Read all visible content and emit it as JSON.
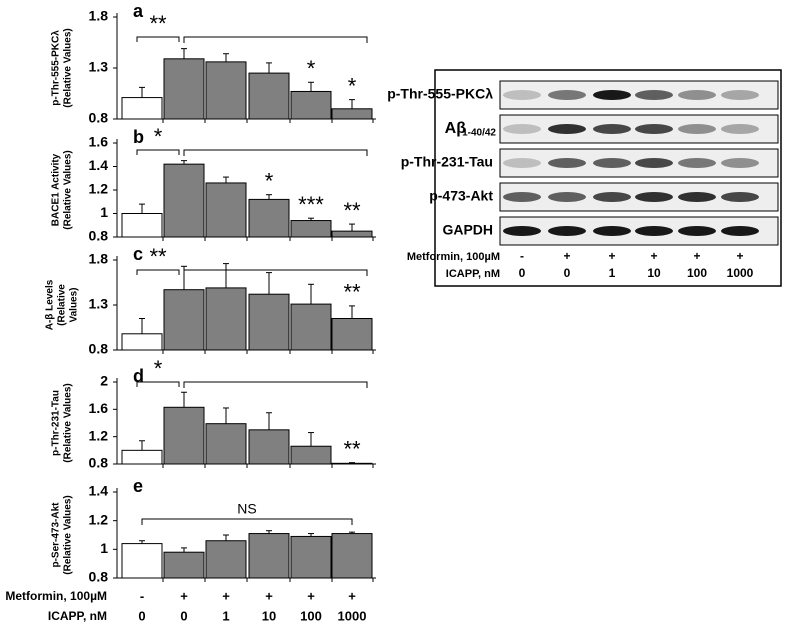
{
  "chart_data": [
    {
      "type": "bar",
      "panel": "a",
      "ylabel": [
        "p-Thr-555-PKCλ",
        "(Relative Values)"
      ],
      "ylim": [
        0.8,
        1.8
      ],
      "yticks": [
        0.8,
        1.3,
        1.8
      ],
      "values": [
        1.01,
        1.39,
        1.36,
        1.25,
        1.07,
        0.9
      ],
      "errors": [
        0.1,
        0.1,
        0.08,
        0.1,
        0.09,
        0.09
      ],
      "colors": [
        "#ffffff",
        "#808080",
        "#808080",
        "#808080",
        "#808080",
        "#808080"
      ],
      "bracket_label": "**",
      "bar_labels": [
        null,
        null,
        null,
        null,
        "*",
        "*"
      ]
    },
    {
      "type": "bar",
      "panel": "b",
      "ylabel": [
        "BACE1 Activity",
        "(Relative Values)"
      ],
      "ylim": [
        0.8,
        1.6
      ],
      "yticks": [
        0.8,
        1,
        1.2,
        1.4,
        1.6
      ],
      "values": [
        1.0,
        1.42,
        1.26,
        1.12,
        0.94,
        0.85
      ],
      "errors": [
        0.08,
        0.03,
        0.05,
        0.04,
        0.02,
        0.06
      ],
      "colors": [
        "#ffffff",
        "#808080",
        "#808080",
        "#808080",
        "#808080",
        "#808080"
      ],
      "bracket_label": "*",
      "bar_labels": [
        null,
        null,
        null,
        "*",
        "***",
        "**"
      ]
    },
    {
      "type": "bar",
      "panel": "c",
      "ylabel": [
        "A-β Levels",
        "(Relative",
        "Values)"
      ],
      "ylim": [
        0.8,
        1.8
      ],
      "yticks": [
        0.8,
        1.3,
        1.8
      ],
      "values": [
        0.98,
        1.47,
        1.49,
        1.42,
        1.31,
        1.15
      ],
      "errors": [
        0.17,
        0.26,
        0.27,
        0.24,
        0.22,
        0.14
      ],
      "colors": [
        "#ffffff",
        "#808080",
        "#808080",
        "#808080",
        "#808080",
        "#808080"
      ],
      "bracket_label": "**",
      "bar_labels": [
        null,
        null,
        null,
        null,
        null,
        "**"
      ]
    },
    {
      "type": "bar",
      "panel": "d",
      "ylabel": [
        "p-Thr-231-Tau",
        "(Relative Values)"
      ],
      "ylim": [
        0.8,
        2.0
      ],
      "yticks": [
        0.8,
        1.2,
        1.6,
        2
      ],
      "values": [
        1.0,
        1.63,
        1.39,
        1.3,
        1.06,
        0.81
      ],
      "errors": [
        0.14,
        0.22,
        0.23,
        0.25,
        0.2,
        0.01
      ],
      "colors": [
        "#ffffff",
        "#808080",
        "#808080",
        "#808080",
        "#808080",
        "#808080"
      ],
      "bracket_label": "*",
      "bar_labels": [
        null,
        null,
        null,
        null,
        null,
        "**"
      ]
    },
    {
      "type": "bar",
      "panel": "e",
      "ylabel": [
        "p-Ser-473-Akt",
        "(Relative Values)"
      ],
      "ylim": [
        0.8,
        1.4
      ],
      "yticks": [
        0.8,
        1,
        1.2,
        1.4
      ],
      "values": [
        1.04,
        0.98,
        1.06,
        1.11,
        1.09,
        1.11
      ],
      "errors": [
        0.02,
        0.03,
        0.04,
        0.02,
        0.02,
        0.01
      ],
      "colors": [
        "#ffffff",
        "#808080",
        "#808080",
        "#808080",
        "#808080",
        "#808080"
      ],
      "bracket_label": "NS",
      "bar_labels": [
        null,
        null,
        null,
        null,
        null,
        null
      ]
    }
  ],
  "treatments": [
    {
      "label": "Metformin, 100µM",
      "values": [
        "-",
        "+",
        "+",
        "+",
        "+",
        "+"
      ]
    },
    {
      "label": "ICAPP, nM",
      "values": [
        "0",
        "0",
        "1",
        "10",
        "100",
        "1000"
      ]
    }
  ],
  "blot": {
    "rows": [
      "p-Thr-555-PKCλ",
      "Aβ",
      "p-Thr-231-Tau",
      "p-473-Akt",
      "GAPDH"
    ],
    "row_subscript": "1-40/42",
    "treatments": [
      {
        "label": "Metformin, 100µM",
        "values": [
          "-",
          "+",
          "+",
          "+",
          "+",
          "+"
        ]
      },
      {
        "label": "ICAPP, nM",
        "values": [
          "0",
          "0",
          "1",
          "10",
          "100",
          "1000"
        ]
      }
    ]
  }
}
